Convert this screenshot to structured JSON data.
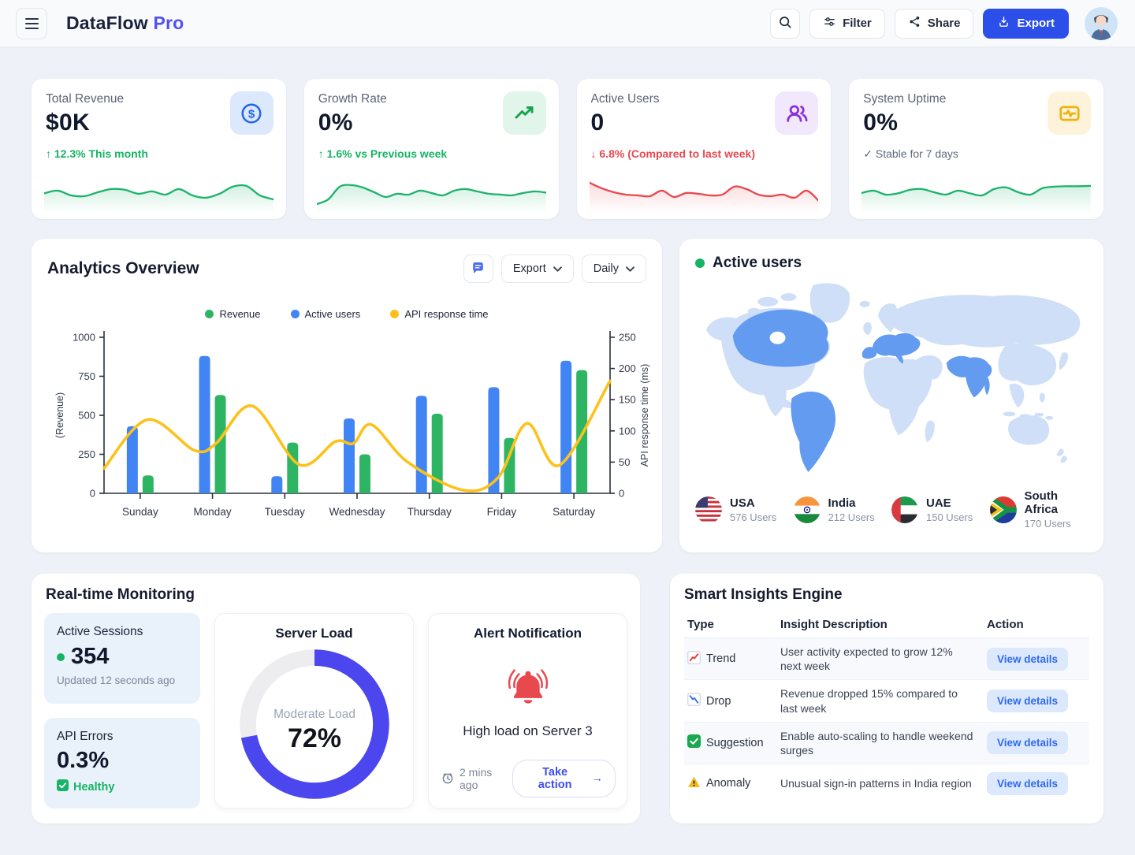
{
  "header": {
    "brand": "DataFlow",
    "brand_accent": "Pro",
    "filter_label": "Filter",
    "share_label": "Share",
    "export_label": "Export"
  },
  "colors": {
    "accent_blue": "#2b4fe8",
    "bar_blue": "#4184f4",
    "bar_green": "#2eb563",
    "line_yellow": "#fcc21b",
    "donut_blue": "#4b46ee",
    "positive_green": "#16b364",
    "negative_red": "#e8494f",
    "map_base": "#cfdff7",
    "map_highlight": "#629bf0"
  },
  "stat_cards": [
    {
      "label": "Total Revenue",
      "value": "$0K",
      "delta": "↑ 12.3% This month",
      "trend": "up",
      "icon": "dollar-circle-icon",
      "spark_color": "#1db36d",
      "spark": [
        45,
        52,
        40,
        38,
        48,
        56,
        54,
        44,
        50,
        42,
        56,
        40,
        34,
        44,
        62,
        64,
        40,
        30
      ]
    },
    {
      "label": "Growth Rate",
      "value": "0%",
      "delta": "↑ 1.6% vs Previous week",
      "trend": "up",
      "icon": "trending-up-icon",
      "spark_color": "#1db36d",
      "spark": [
        18,
        30,
        62,
        66,
        60,
        48,
        36,
        44,
        42,
        52,
        46,
        40,
        52,
        56,
        50,
        44,
        42,
        40,
        46,
        50,
        47
      ]
    },
    {
      "label": "Active Users",
      "value": "0",
      "delta": "↓ 6.8% (Compared to last week)",
      "trend": "down",
      "icon": "users-icon",
      "spark_color": "#e8494f",
      "spark": [
        72,
        58,
        48,
        42,
        40,
        38,
        52,
        36,
        46,
        44,
        40,
        42,
        62,
        56,
        42,
        38,
        42,
        34,
        52,
        26
      ]
    },
    {
      "label": "System Uptime",
      "value": "0%",
      "delta": "✓ Stable for 7 days",
      "trend": "neutral",
      "icon": "activity-icon",
      "spark_color": "#1db36d",
      "spark": [
        46,
        52,
        42,
        45,
        54,
        56,
        48,
        42,
        52,
        45,
        40,
        56,
        60,
        48,
        42,
        58,
        62,
        63,
        63,
        64
      ]
    }
  ],
  "analytics": {
    "title": "Analytics Overview",
    "export_label": "Export",
    "range_label": "Daily",
    "chart_data": {
      "type": "bar+line",
      "categories": [
        "Sunday",
        "Monday",
        "Tuesday",
        "Wednesday",
        "Thursday",
        "Friday",
        "Saturday"
      ],
      "bar_series": [
        {
          "name": "Active users",
          "color": "#4184f4",
          "axis": "left",
          "values": [
            430,
            880,
            110,
            480,
            625,
            680,
            850
          ]
        },
        {
          "name": "Revenue",
          "color": "#2eb563",
          "axis": "left",
          "values": [
            115,
            630,
            325,
            250,
            510,
            355,
            790
          ]
        }
      ],
      "line_series": {
        "name": "API response time",
        "color": "#fcc21b",
        "axis": "right",
        "points": [
          [
            0,
            40
          ],
          [
            0.6,
            118
          ],
          [
            1.25,
            69
          ],
          [
            1.55,
            80
          ],
          [
            2.05,
            140
          ],
          [
            2.7,
            46
          ],
          [
            3.2,
            83
          ],
          [
            3.45,
            80
          ],
          [
            3.7,
            110
          ],
          [
            4.2,
            50
          ],
          [
            4.97,
            5
          ],
          [
            5.45,
            25
          ],
          [
            5.85,
            112
          ],
          [
            6.3,
            45
          ],
          [
            7.0,
            180
          ]
        ]
      },
      "left_axis": {
        "label": "(Revenue)",
        "min": 0,
        "max": 1000,
        "ticks": [
          0,
          250,
          500,
          750,
          1000
        ]
      },
      "right_axis": {
        "label": "API response time (ms)",
        "min": 0,
        "max": 250,
        "ticks": [
          0,
          50,
          100,
          150,
          200,
          250
        ]
      },
      "legend": [
        {
          "label": "Revenue",
          "color": "#2eb563"
        },
        {
          "label": "Active users",
          "color": "#4184f4"
        },
        {
          "label": "API response time",
          "color": "#fcc21b"
        }
      ]
    }
  },
  "active_users_panel": {
    "title": "Active users",
    "countries": [
      {
        "name": "USA",
        "users": "576 Users",
        "flag": "usa"
      },
      {
        "name": "India",
        "users": "212 Users",
        "flag": "india"
      },
      {
        "name": "UAE",
        "users": "150 Users",
        "flag": "uae"
      },
      {
        "name": "South Africa",
        "users": "170 Users",
        "flag": "south-africa"
      }
    ]
  },
  "monitoring": {
    "title": "Real-time Monitoring",
    "active_sessions": {
      "label": "Active Sessions",
      "value": "354",
      "updated": "Updated 12 seconds ago"
    },
    "api_errors": {
      "label": "API Errors",
      "value": "0.3%",
      "status": "Healthy"
    },
    "server_load": {
      "title": "Server Load",
      "percent": 72,
      "status": "Moderate Load",
      "value_label": "72%"
    },
    "alert": {
      "title": "Alert Notification",
      "message": "High load on Server 3",
      "time": "2 mins ago",
      "action_label": "Take action",
      "action_arrow": "→"
    }
  },
  "insights": {
    "title": "Smart Insights Engine",
    "columns": [
      "Type",
      "Insight Description",
      "Action"
    ],
    "rows": [
      {
        "type": "Trend",
        "icon": "trend-up-icon",
        "description": "User activity expected to grow 12% next week",
        "action": "View details"
      },
      {
        "type": "Drop",
        "icon": "trend-down-icon",
        "description": "Revenue dropped 15% compared to last week",
        "action": "View details"
      },
      {
        "type": "Suggestion",
        "icon": "check-icon",
        "description": "Enable auto-scaling to handle weekend surges",
        "action": "View details"
      },
      {
        "type": "Anomaly",
        "icon": "warning-icon",
        "description": "Unusual sign-in patterns in India region",
        "action": "View details"
      }
    ]
  }
}
